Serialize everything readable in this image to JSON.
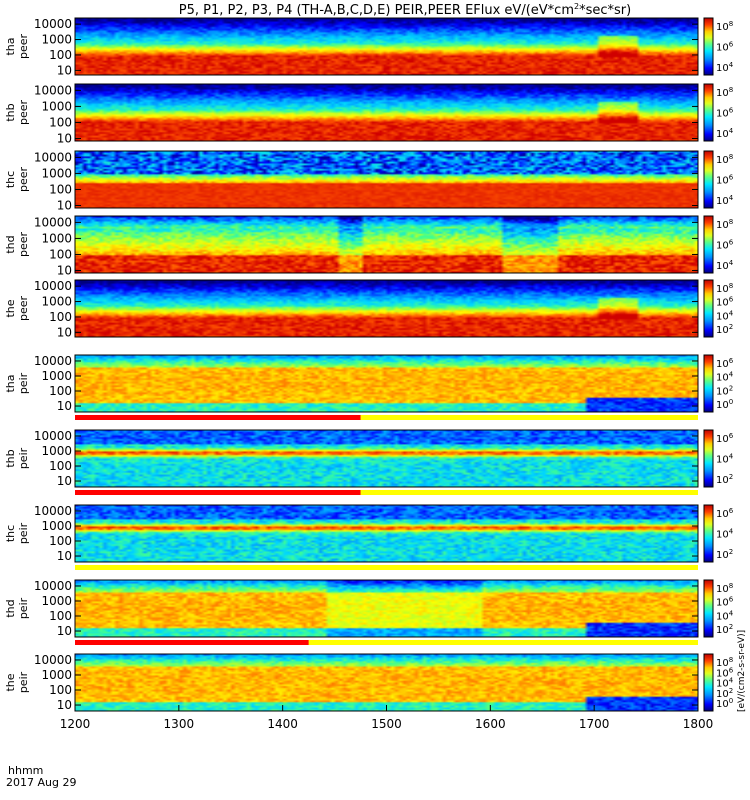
{
  "chart_data": {
    "type": "heatmap",
    "title": "P5, P1, P2, P3, P4 (TH-A,B,C,D,E) PEIR,PEER EFlux eV/(eV*cm^2*sec*sr)",
    "title_parts": {
      "main": "P5, P1, P2, P3, P4 (TH-A,B,C,D,E) PEIR,PEER EFlux eV/(eV*cm",
      "exp": "2",
      "tail": "*sec*sr)"
    },
    "x_ticks": [
      "1200",
      "1300",
      "1400",
      "1500",
      "1600",
      "1700",
      "1800"
    ],
    "xlim": [
      1200,
      1800
    ],
    "x_label_top": "hhmm",
    "x_label_bottom": "2017 Aug 29",
    "y_scale": "log",
    "colorbar_unit": "[eV/(cm2-s-sr-eV)]",
    "colorbar_scale": "log",
    "panels": [
      {
        "label_top": "tha",
        "label_bottom": "peer",
        "y_ticks": [
          "10000",
          "1000",
          "100",
          "10"
        ],
        "ylim": [
          5,
          25000
        ],
        "cb_exponents": [
          "8",
          "6",
          "4"
        ],
        "mode_bar": false,
        "mode_end": null
      },
      {
        "label_top": "thb",
        "label_bottom": "peer",
        "y_ticks": [
          "10000",
          "1000",
          "100",
          "10"
        ],
        "ylim": [
          7,
          25000
        ],
        "cb_exponents": [
          "8",
          "6",
          "4"
        ],
        "mode_bar": false,
        "mode_end": null
      },
      {
        "label_top": "thc",
        "label_bottom": "peer",
        "y_ticks": [
          "10000",
          "1000",
          "100",
          "10"
        ],
        "ylim": [
          7,
          25000
        ],
        "cb_exponents": [
          "8",
          "6",
          "4"
        ],
        "mode_bar": false,
        "mode_end": null
      },
      {
        "label_top": "thd",
        "label_bottom": "peer",
        "y_ticks": [
          "10000",
          "1000",
          "100",
          "10"
        ],
        "ylim": [
          7,
          25000
        ],
        "cb_exponents": [
          "8",
          "6",
          "4"
        ],
        "mode_bar": false,
        "mode_end": null
      },
      {
        "label_top": "the",
        "label_bottom": "peer",
        "y_ticks": [
          "10000",
          "1000",
          "100",
          "10"
        ],
        "ylim": [
          5,
          25000
        ],
        "cb_exponents": [
          "8",
          "6",
          "4",
          "2"
        ],
        "mode_bar": false,
        "mode_end": null
      },
      {
        "label_top": "tha",
        "label_bottom": "peir",
        "y_ticks": [
          "10000",
          "1000",
          "100",
          "10"
        ],
        "ylim": [
          4,
          25000
        ],
        "cb_exponents": [
          "6",
          "4",
          "2",
          "0"
        ],
        "mode_bar": true,
        "mode_end": 1475
      },
      {
        "label_top": "thb",
        "label_bottom": "peir",
        "y_ticks": [
          "10000",
          "1000",
          "100",
          "10"
        ],
        "ylim": [
          4,
          25000
        ],
        "cb_exponents": [
          "6",
          "4",
          "2"
        ],
        "mode_bar": true,
        "mode_end": 1475
      },
      {
        "label_top": "thc",
        "label_bottom": "peir",
        "y_ticks": [
          "10000",
          "1000",
          "100",
          "10"
        ],
        "ylim": [
          4,
          25000
        ],
        "cb_exponents": [
          "6",
          "4",
          "2"
        ],
        "mode_bar": true,
        "mode_end": null
      },
      {
        "label_top": "thd",
        "label_bottom": "peir",
        "y_ticks": [
          "10000",
          "1000",
          "100",
          "10"
        ],
        "ylim": [
          4,
          25000
        ],
        "cb_exponents": [
          "8",
          "6",
          "4",
          "2"
        ],
        "mode_bar": true,
        "mode_end": 1425
      },
      {
        "label_top": "the",
        "label_bottom": "peir",
        "y_ticks": [
          "10000",
          "1000",
          "100",
          "10"
        ],
        "ylim": [
          4,
          25000
        ],
        "cb_exponents": [
          "8",
          "6",
          "4",
          "2",
          "0"
        ],
        "mode_bar": false,
        "mode_end": null
      }
    ],
    "colormap": [
      "#00007f",
      "#0000ff",
      "#0080ff",
      "#00d8ff",
      "#40ff90",
      "#b0ff30",
      "#ffff00",
      "#ffb000",
      "#ff5000",
      "#d00000"
    ],
    "mode_bar_colors": {
      "on": "#ff0000",
      "off": "#ffff00"
    }
  }
}
